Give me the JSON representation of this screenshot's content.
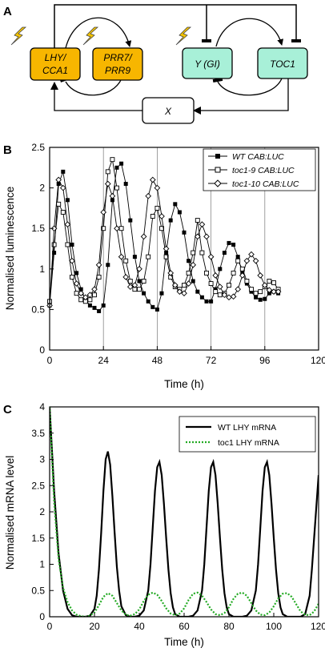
{
  "panels": {
    "a": {
      "letter": "A",
      "nodes": {
        "lhy": [
          "LHY/",
          "CCA1"
        ],
        "prr": [
          "PRR7/",
          "PRR9"
        ],
        "y": "Y (GI)",
        "toc1": "TOC1",
        "x": "X"
      },
      "colors": {
        "orange": "#f7b600",
        "teal": "#a8f0d8",
        "white": "#ffffff",
        "bolt": "#f5c400"
      }
    },
    "b": {
      "letter": "B",
      "xlabel": "Time (h)",
      "ylabel": "Normalised luminescence",
      "legend": [
        "WT CAB:LUC",
        "toc1-9 CAB:LUC",
        "toc1-10 CAB:LUC"
      ]
    },
    "c": {
      "letter": "C",
      "xlabel": "Time (h)",
      "ylabel": "Normalised mRNA level",
      "legend": [
        "WT LHY mRNA",
        "toc1 LHY mRNA"
      ],
      "colors": {
        "wt": "#000000",
        "toc1": "#22aa22"
      }
    }
  },
  "chart_data": [
    {
      "type": "line",
      "xlabel": "Time (h)",
      "ylabel": "Normalised luminescence",
      "xlim": [
        0,
        120
      ],
      "ylim": [
        0,
        2.5
      ],
      "xticks": [
        0,
        24,
        48,
        72,
        96,
        120
      ],
      "yticks": [
        0,
        0.5,
        1,
        1.5,
        2,
        2.5
      ],
      "vertical_gridlines": [
        24,
        48,
        72,
        96
      ],
      "legend_position": "top-right",
      "series": [
        {
          "name": "WT CAB:LUC",
          "marker": "filled-square",
          "x": [
            0,
            2,
            4,
            6,
            8,
            10,
            12,
            14,
            16,
            18,
            20,
            22,
            24,
            26,
            28,
            30,
            32,
            34,
            36,
            38,
            40,
            42,
            44,
            46,
            48,
            50,
            52,
            54,
            56,
            58,
            60,
            62,
            64,
            66,
            68,
            70,
            72,
            74,
            76,
            78,
            80,
            82,
            84,
            86,
            88,
            90,
            92,
            94,
            96,
            98,
            100,
            102
          ],
          "y": [
            0.55,
            1.2,
            2.05,
            2.2,
            1.85,
            1.3,
            0.95,
            0.75,
            0.62,
            0.55,
            0.52,
            0.48,
            0.55,
            1.05,
            1.85,
            2.25,
            2.3,
            2.05,
            1.6,
            1.15,
            0.85,
            0.7,
            0.6,
            0.53,
            0.5,
            0.7,
            1.2,
            1.6,
            1.8,
            1.7,
            1.45,
            1.1,
            0.85,
            0.72,
            0.65,
            0.6,
            0.6,
            0.75,
            1.0,
            1.2,
            1.32,
            1.3,
            1.15,
            0.95,
            0.82,
            0.72,
            0.65,
            0.62,
            0.63,
            0.7,
            0.72,
            0.7
          ]
        },
        {
          "name": "toc1-9 CAB:LUC",
          "marker": "open-square",
          "x": [
            0,
            2,
            4,
            6,
            8,
            10,
            12,
            14,
            16,
            18,
            20,
            22,
            24,
            26,
            28,
            30,
            32,
            34,
            36,
            38,
            40,
            42,
            44,
            46,
            48,
            50,
            52,
            54,
            56,
            58,
            60,
            62,
            64,
            66,
            68,
            70,
            72,
            74,
            76,
            78,
            80,
            82,
            84,
            86,
            88,
            90,
            92,
            94,
            96,
            98,
            100,
            102
          ],
          "y": [
            0.6,
            1.3,
            1.8,
            1.7,
            1.3,
            0.9,
            0.7,
            0.62,
            0.6,
            0.62,
            0.68,
            0.9,
            1.5,
            2.2,
            2.35,
            2.0,
            1.5,
            1.1,
            0.85,
            0.75,
            0.75,
            0.85,
            1.15,
            1.65,
            1.75,
            1.5,
            1.15,
            0.9,
            0.78,
            0.75,
            0.8,
            0.95,
            1.2,
            1.6,
            1.2,
            0.95,
            0.82,
            0.72,
            0.68,
            0.7,
            0.8,
            0.95,
            1.1,
            1.0,
            0.85,
            0.75,
            0.7,
            0.72,
            0.78,
            0.85,
            0.83,
            0.75
          ]
        },
        {
          "name": "toc1-10 CAB:LUC",
          "marker": "open-diamond",
          "x": [
            0,
            2,
            4,
            6,
            8,
            10,
            12,
            14,
            16,
            18,
            20,
            22,
            24,
            26,
            28,
            30,
            32,
            34,
            36,
            38,
            40,
            42,
            44,
            46,
            48,
            50,
            52,
            54,
            56,
            58,
            60,
            62,
            64,
            66,
            68,
            70,
            72,
            74,
            76,
            78,
            80,
            82,
            84,
            86,
            88,
            90,
            92,
            94,
            96,
            98,
            100,
            102
          ],
          "y": [
            0.55,
            1.5,
            2.1,
            2.0,
            1.55,
            1.1,
            0.82,
            0.7,
            0.65,
            0.68,
            0.75,
            1.05,
            1.7,
            2.05,
            1.9,
            1.5,
            1.15,
            0.9,
            0.78,
            0.8,
            1.0,
            1.4,
            1.9,
            2.1,
            2.0,
            1.65,
            1.25,
            0.95,
            0.8,
            0.72,
            0.7,
            0.82,
            1.05,
            1.4,
            1.55,
            1.4,
            1.15,
            0.92,
            0.78,
            0.68,
            0.65,
            0.66,
            0.75,
            0.92,
            1.1,
            1.18,
            1.1,
            0.92,
            0.8,
            0.74,
            0.72,
            0.72
          ]
        }
      ]
    },
    {
      "type": "line",
      "xlabel": "Time (h)",
      "ylabel": "Normalised mRNA level",
      "xlim": [
        0,
        120
      ],
      "ylim": [
        0,
        4
      ],
      "xticks": [
        0,
        20,
        40,
        60,
        80,
        100,
        120
      ],
      "yticks": [
        0,
        0.5,
        1,
        1.5,
        2,
        2.5,
        3,
        3.5,
        4
      ],
      "legend_position": "top-right",
      "series": [
        {
          "name": "WT LHY mRNA",
          "style": "solid",
          "x": [
            0,
            2,
            4,
            6,
            8,
            10,
            12,
            14,
            16,
            18,
            20,
            21,
            22,
            23,
            24,
            25,
            26,
            27,
            28,
            29,
            30,
            31,
            32,
            34,
            36,
            38,
            40,
            42,
            44,
            45,
            46,
            47,
            48,
            49,
            50,
            51,
            52,
            53,
            54,
            55,
            56,
            58,
            60,
            62,
            64,
            66,
            68,
            69,
            70,
            71,
            72,
            73,
            74,
            75,
            76,
            77,
            78,
            79,
            80,
            82,
            84,
            86,
            88,
            90,
            92,
            93,
            94,
            95,
            96,
            97,
            98,
            99,
            100,
            101,
            102,
            103,
            104,
            106,
            108,
            110,
            112,
            114,
            116,
            117,
            118,
            119,
            120
          ],
          "y": [
            4.0,
            2.4,
            1.2,
            0.5,
            0.15,
            0.03,
            0.0,
            0.0,
            0.0,
            0.02,
            0.15,
            0.4,
            0.9,
            1.6,
            2.4,
            3.0,
            3.15,
            2.9,
            2.3,
            1.6,
            0.95,
            0.5,
            0.2,
            0.03,
            0.0,
            0.0,
            0.02,
            0.12,
            0.5,
            1.0,
            1.7,
            2.4,
            2.85,
            2.95,
            2.7,
            2.15,
            1.5,
            0.9,
            0.45,
            0.18,
            0.05,
            0.0,
            0.0,
            0.0,
            0.02,
            0.12,
            0.5,
            1.0,
            1.7,
            2.4,
            2.85,
            2.95,
            2.7,
            2.15,
            1.5,
            0.9,
            0.45,
            0.18,
            0.05,
            0.0,
            0.0,
            0.0,
            0.02,
            0.12,
            0.5,
            1.0,
            1.7,
            2.4,
            2.85,
            2.95,
            2.7,
            2.15,
            1.5,
            0.9,
            0.45,
            0.18,
            0.05,
            0.0,
            0.0,
            0.0,
            0.0,
            0.05,
            0.4,
            0.9,
            1.5,
            2.1,
            2.7
          ]
        },
        {
          "name": "toc1 LHY mRNA",
          "style": "dotted",
          "x": [
            0,
            2,
            4,
            6,
            8,
            10,
            12,
            14,
            16,
            18,
            20,
            22,
            24,
            26,
            28,
            30,
            32,
            34,
            36,
            38,
            40,
            42,
            44,
            46,
            48,
            50,
            52,
            54,
            56,
            58,
            60,
            62,
            64,
            66,
            68,
            70,
            72,
            74,
            76,
            78,
            80,
            82,
            84,
            86,
            88,
            90,
            92,
            94,
            96,
            98,
            100,
            102,
            104,
            106,
            108,
            110,
            112,
            114,
            116,
            118,
            120
          ],
          "y": [
            4.0,
            2.2,
            1.1,
            0.55,
            0.28,
            0.12,
            0.04,
            0.01,
            0.0,
            0.02,
            0.08,
            0.22,
            0.38,
            0.45,
            0.4,
            0.26,
            0.12,
            0.04,
            0.02,
            0.05,
            0.14,
            0.3,
            0.42,
            0.46,
            0.42,
            0.3,
            0.16,
            0.06,
            0.03,
            0.06,
            0.16,
            0.32,
            0.44,
            0.46,
            0.4,
            0.28,
            0.14,
            0.05,
            0.03,
            0.07,
            0.18,
            0.34,
            0.44,
            0.46,
            0.4,
            0.26,
            0.12,
            0.04,
            0.03,
            0.08,
            0.2,
            0.35,
            0.44,
            0.45,
            0.38,
            0.24,
            0.1,
            0.04,
            0.03,
            0.1,
            0.25
          ]
        }
      ]
    }
  ]
}
